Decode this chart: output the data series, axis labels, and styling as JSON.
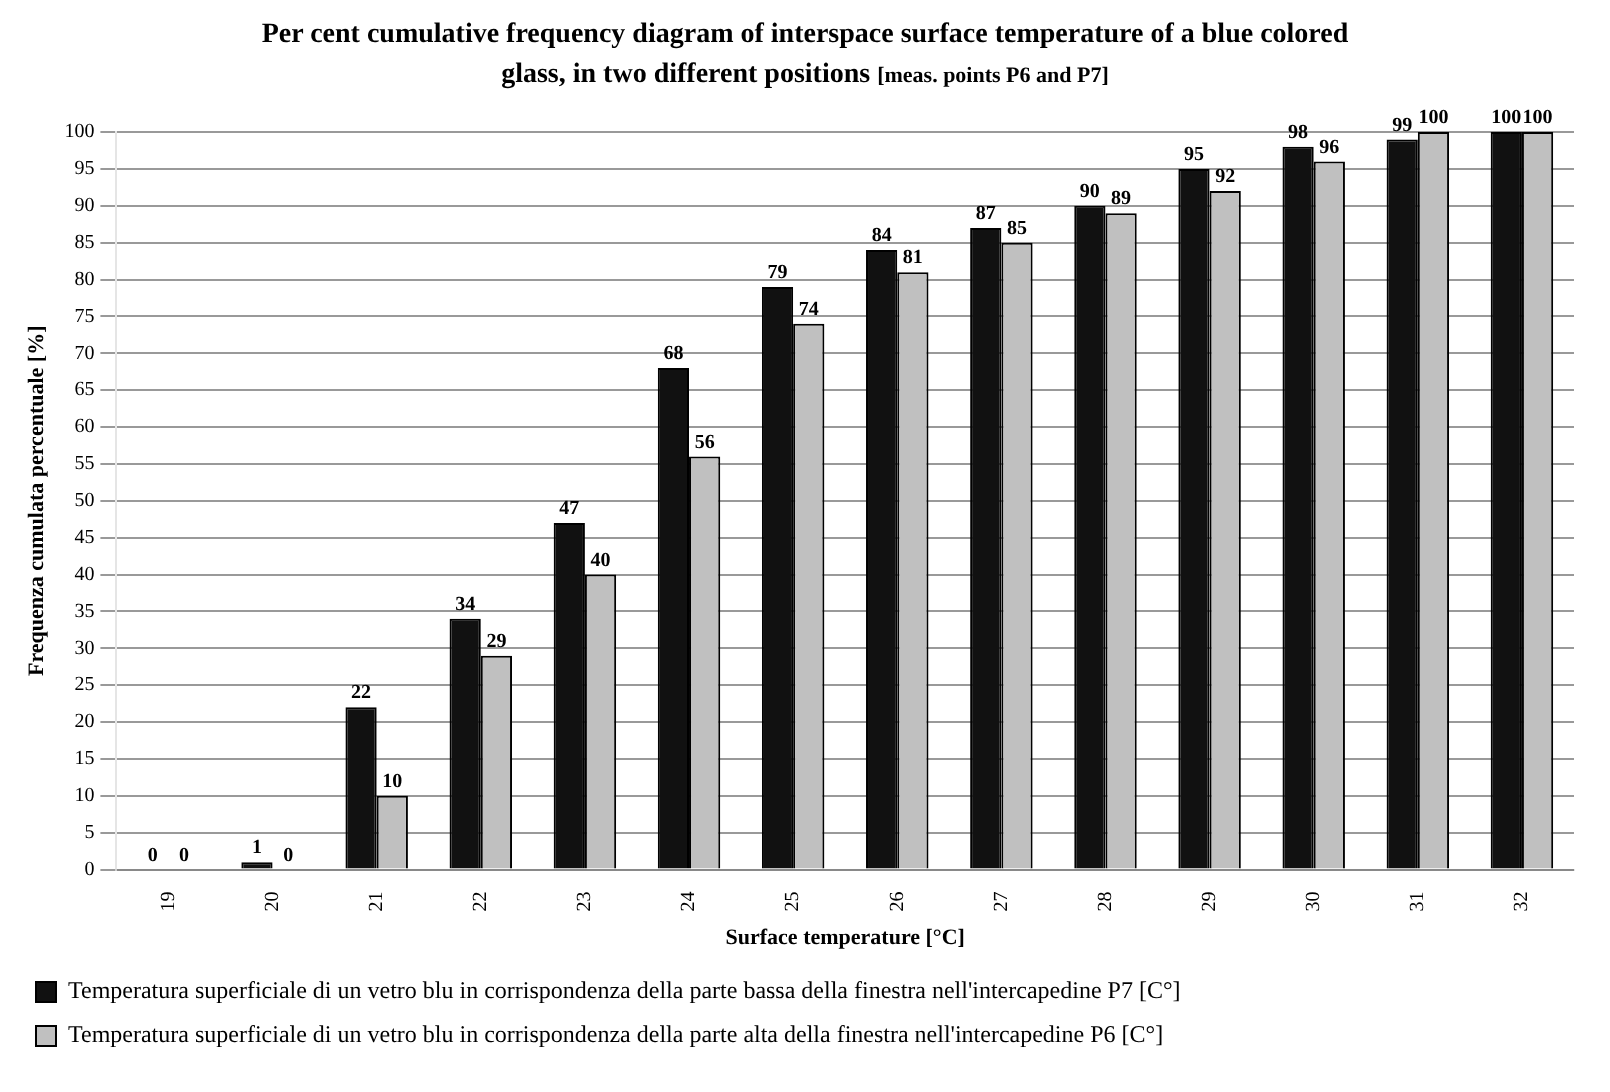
{
  "chart_data": {
    "type": "bar",
    "title": "Per cent cumulative frequency diagram of interspace surface temperature of a blue colored glass, in two different positions",
    "subtitle": "[meas. points P6 and P7]",
    "xlabel": "Surface temperature [°C]",
    "ylabel": "Frequenza cumulata percentuale [%]",
    "categories": [
      "19",
      "20",
      "21",
      "22",
      "23",
      "24",
      "25",
      "26",
      "27",
      "28",
      "29",
      "30",
      "31",
      "32"
    ],
    "series": [
      {
        "name": "Temperatura superficiale di un vetro blu in corrispondenza della parte bassa della finestra nell'intercapedine P7 [C°]",
        "color": "#111111",
        "values": [
          0,
          1,
          22,
          34,
          47,
          68,
          79,
          84,
          87,
          90,
          95,
          98,
          99,
          100
        ]
      },
      {
        "name": "Temperatura superficiale di un vetro blu in corrispondenza della parte alta della finestra nell'intercapedine P6 [C°]",
        "color": "#c0c0c0",
        "values": [
          0,
          0,
          10,
          29,
          40,
          56,
          74,
          81,
          85,
          89,
          92,
          96,
          100,
          100
        ]
      }
    ],
    "ylim": [
      0,
      100
    ],
    "yticks": [
      0,
      5,
      10,
      15,
      20,
      25,
      30,
      35,
      40,
      45,
      50,
      55,
      60,
      65,
      70,
      75,
      80,
      85,
      90,
      95,
      100
    ],
    "grid": "y",
    "legend": "bottom",
    "data_labels": true
  }
}
